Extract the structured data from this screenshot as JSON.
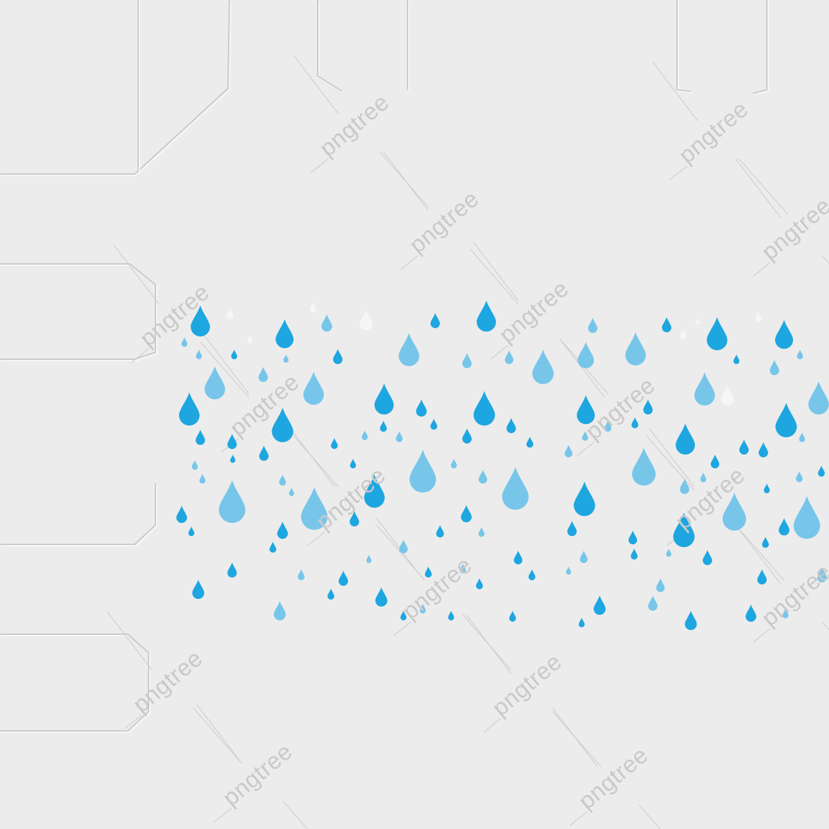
{
  "watermark": {
    "text": "pngtree"
  },
  "colors": {
    "background": "#ececec",
    "drop_dark": "#1ea6e0",
    "drop_light": "#77c6ea",
    "drop_white": "#f6f6f6",
    "watermark": "#c9c9c9",
    "frame_line": "#cbcbcb"
  }
}
